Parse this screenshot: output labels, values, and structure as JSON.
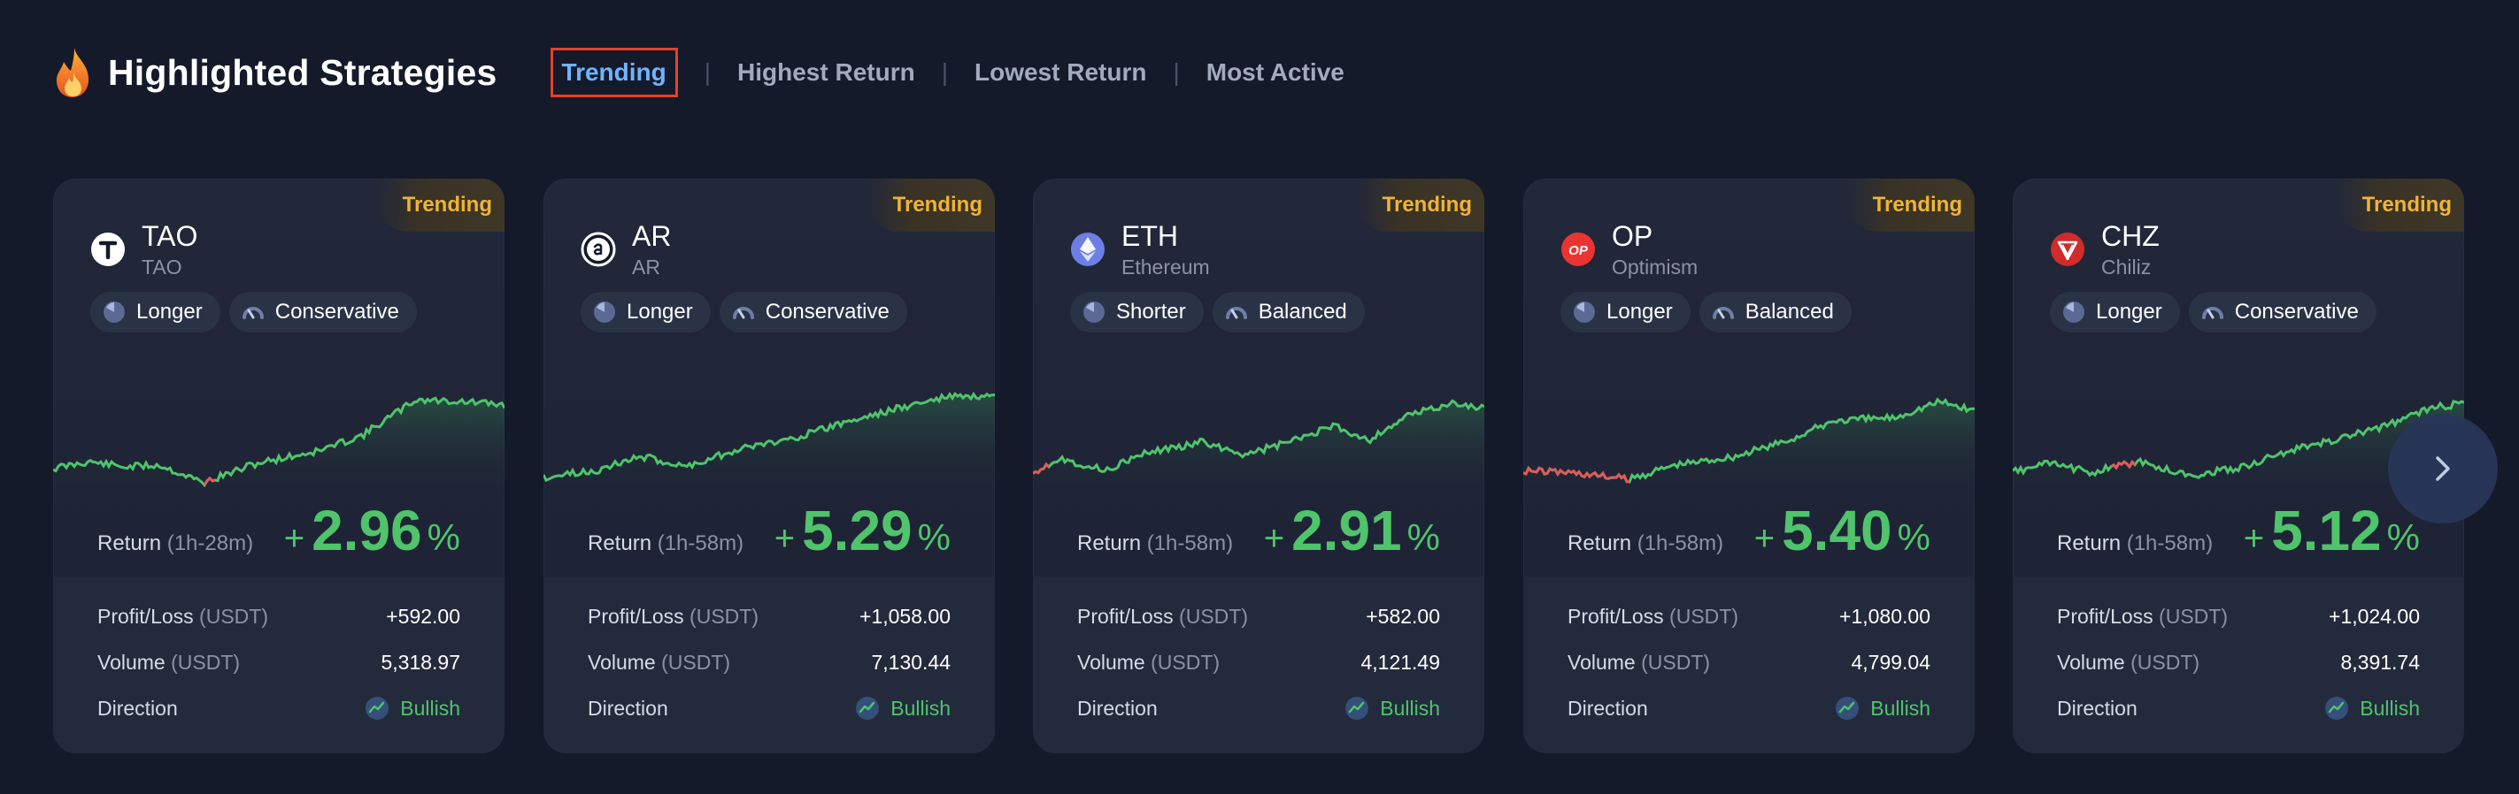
{
  "header": {
    "title": "Highlighted Strategies",
    "tabs": [
      {
        "label": "Trending",
        "active": true
      },
      {
        "label": "Highest Return",
        "active": false
      },
      {
        "label": "Lowest Return",
        "active": false
      },
      {
        "label": "Most Active",
        "active": false
      }
    ],
    "separator": "|"
  },
  "colors": {
    "background": "#141a29",
    "accent_blue": "#6fb4ff",
    "active_tab_border": "#e0432c",
    "badge": "#f0b336",
    "positive": "#4fc46b",
    "negative": "#e05a5a"
  },
  "labels": {
    "badge": "Trending",
    "return": "Return",
    "profit_loss": "Profit/Loss",
    "volume": "Volume",
    "unit": "(USDT)",
    "direction": "Direction",
    "plus": "+",
    "percent": "%"
  },
  "cards": [
    {
      "symbol": "TAO",
      "name": "TAO",
      "icon": "tao-coin-icon",
      "icon_color": "#ffffff",
      "tags": [
        {
          "label": "Longer",
          "icon": "clock-icon"
        },
        {
          "label": "Conservative",
          "icon": "gauge-icon"
        }
      ],
      "duration": "(1h-28m)",
      "return": "2.96",
      "pnl": "+592.00",
      "volume": "5,318.97",
      "direction": "Bullish"
    },
    {
      "symbol": "AR",
      "name": "AR",
      "icon": "ar-coin-icon",
      "icon_color": "#ffffff",
      "tags": [
        {
          "label": "Longer",
          "icon": "clock-icon"
        },
        {
          "label": "Conservative",
          "icon": "gauge-icon"
        }
      ],
      "duration": "(1h-58m)",
      "return": "5.29",
      "pnl": "+1,058.00",
      "volume": "7,130.44",
      "direction": "Bullish"
    },
    {
      "symbol": "ETH",
      "name": "Ethereum",
      "icon": "eth-coin-icon",
      "icon_color": "#6c7fe6",
      "tags": [
        {
          "label": "Shorter",
          "icon": "clock-icon"
        },
        {
          "label": "Balanced",
          "icon": "gauge-icon"
        }
      ],
      "duration": "(1h-58m)",
      "return": "2.91",
      "pnl": "+582.00",
      "volume": "4,121.49",
      "direction": "Bullish"
    },
    {
      "symbol": "OP",
      "name": "Optimism",
      "icon": "op-coin-icon",
      "icon_color": "#ea3431",
      "tags": [
        {
          "label": "Longer",
          "icon": "clock-icon"
        },
        {
          "label": "Balanced",
          "icon": "gauge-icon"
        }
      ],
      "duration": "(1h-58m)",
      "return": "5.40",
      "pnl": "+1,080.00",
      "volume": "4,799.04",
      "direction": "Bullish"
    },
    {
      "symbol": "CHZ",
      "name": "Chiliz",
      "icon": "chz-coin-icon",
      "icon_color": "#d12b2b",
      "tags": [
        {
          "label": "Longer",
          "icon": "clock-icon"
        },
        {
          "label": "Conservative",
          "icon": "gauge-icon"
        }
      ],
      "duration": "(1h-58m)",
      "return": "5.12",
      "pnl": "+1,024.00",
      "volume": "8,391.74",
      "direction": "Bullish"
    }
  ]
}
